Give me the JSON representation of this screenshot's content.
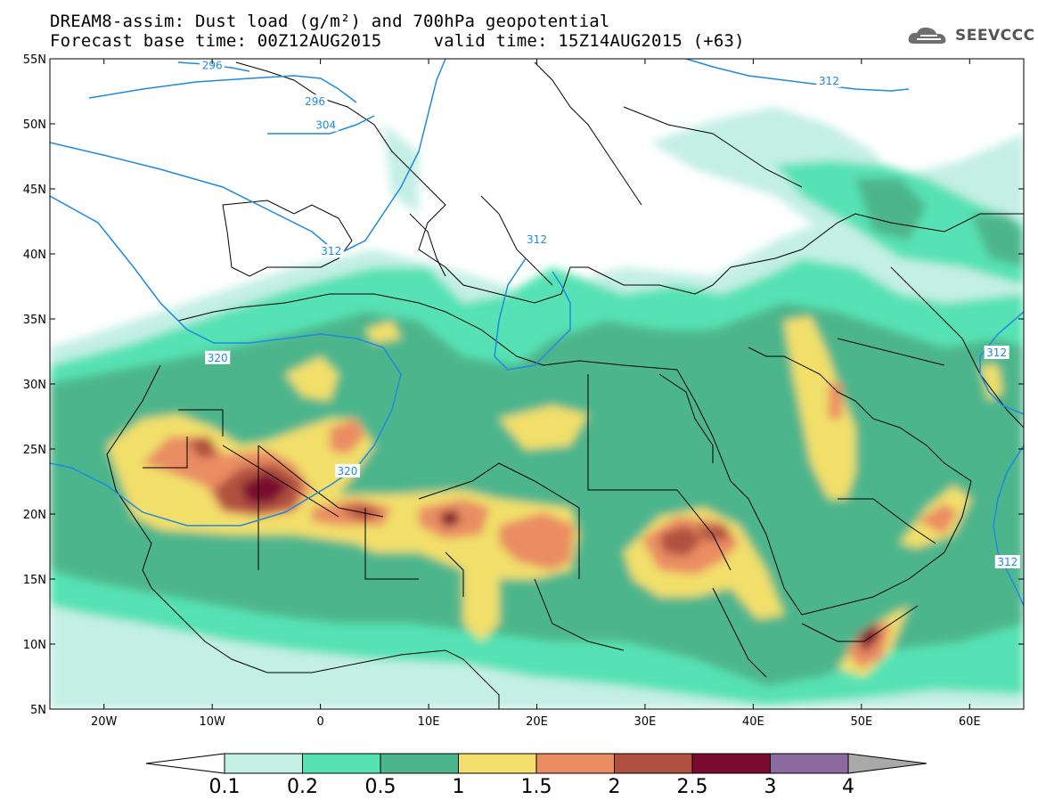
{
  "header": {
    "title_line1": "DREAM8-assim: Dust load (g/m²) and 700hPa geopotential",
    "title_line2": "Forecast base time: 00Z12AUG2015     valid time: 15Z14AUG2015 (+63)",
    "logo_text": "SEEVCCC"
  },
  "map": {
    "lon_range": [
      -25,
      65
    ],
    "lat_range": [
      5,
      55
    ],
    "lat_ticks": [
      {
        "value": 55,
        "label": "55N"
      },
      {
        "value": 50,
        "label": "50N"
      },
      {
        "value": 45,
        "label": "45N"
      },
      {
        "value": 40,
        "label": "40N"
      },
      {
        "value": 35,
        "label": "35N"
      },
      {
        "value": 30,
        "label": "30N"
      },
      {
        "value": 25,
        "label": "25N"
      },
      {
        "value": 20,
        "label": "20N"
      },
      {
        "value": 15,
        "label": "15N"
      },
      {
        "value": 10,
        "label": "10N"
      },
      {
        "value": 5,
        "label": "5N"
      }
    ],
    "lon_ticks": [
      {
        "value": -20,
        "label": "20W"
      },
      {
        "value": -10,
        "label": "10W"
      },
      {
        "value": 0,
        "label": "0"
      },
      {
        "value": 10,
        "label": "10E"
      },
      {
        "value": 20,
        "label": "20E"
      },
      {
        "value": 30,
        "label": "30E"
      },
      {
        "value": 40,
        "label": "40E"
      },
      {
        "value": 50,
        "label": "50E"
      },
      {
        "value": 60,
        "label": "60E"
      }
    ],
    "contour_labels": [
      {
        "text": "296",
        "lon": -10.0,
        "lat": 54.5
      },
      {
        "text": "296",
        "lon": -0.5,
        "lat": 51.7
      },
      {
        "text": "304",
        "lon": 0.5,
        "lat": 49.9
      },
      {
        "text": "312",
        "lon": 1.0,
        "lat": 40.2
      },
      {
        "text": "312",
        "lon": 20.0,
        "lat": 41.1
      },
      {
        "text": "312",
        "lon": 47.0,
        "lat": 53.3
      },
      {
        "text": "312",
        "lon": 62.5,
        "lat": 32.4
      },
      {
        "text": "312",
        "lon": 63.5,
        "lat": 16.3
      },
      {
        "text": "320",
        "lon": -9.5,
        "lat": 32.0
      },
      {
        "text": "320",
        "lon": 2.5,
        "lat": 23.3
      }
    ]
  },
  "colorbar": {
    "boundaries": [
      "0.1",
      "0.2",
      "0.5",
      "1",
      "1.5",
      "2",
      "2.5",
      "3",
      "4"
    ],
    "colors": [
      "#c4efe5",
      "#57e2b4",
      "#4db58c",
      "#f2df6b",
      "#ea8d63",
      "#b05140",
      "#7a0a2f",
      "#8c6aa0"
    ],
    "under_color": "#ffffff",
    "over_color": "#a9a9a9"
  }
}
